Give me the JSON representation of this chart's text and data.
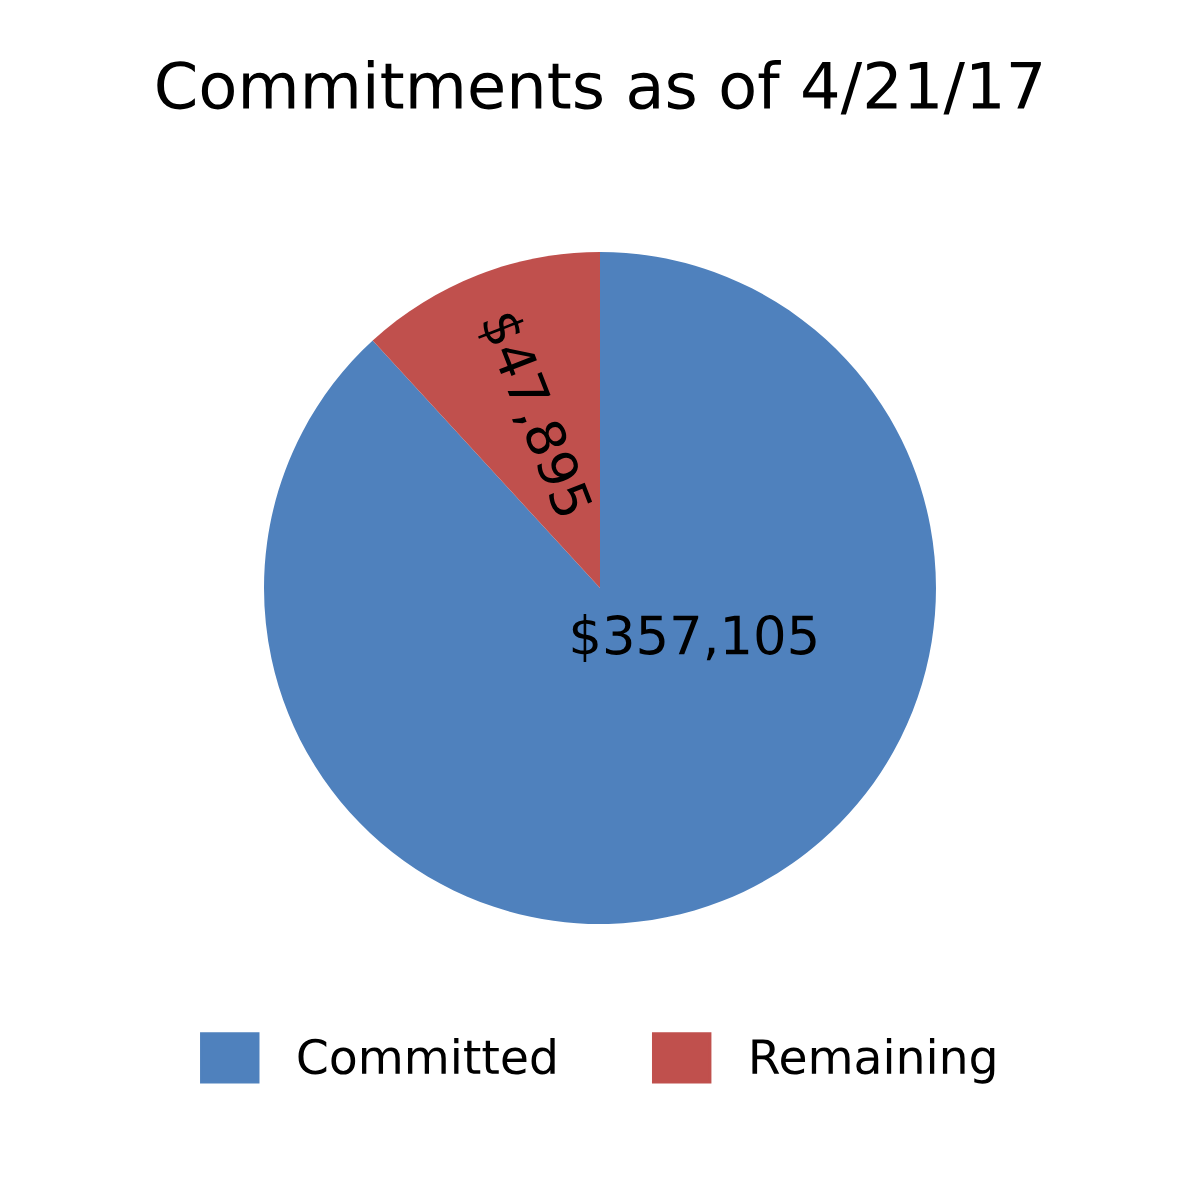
{
  "chart_data": {
    "type": "pie",
    "title": "Commitments as of 4/21/17",
    "categories": [
      "Committed",
      "Remaining"
    ],
    "values": [
      357105,
      47895
    ],
    "value_labels": [
      "$357,105",
      "$47,895"
    ],
    "colors": [
      "#4f81bd",
      "#c0504d"
    ],
    "legend": "bottom"
  }
}
